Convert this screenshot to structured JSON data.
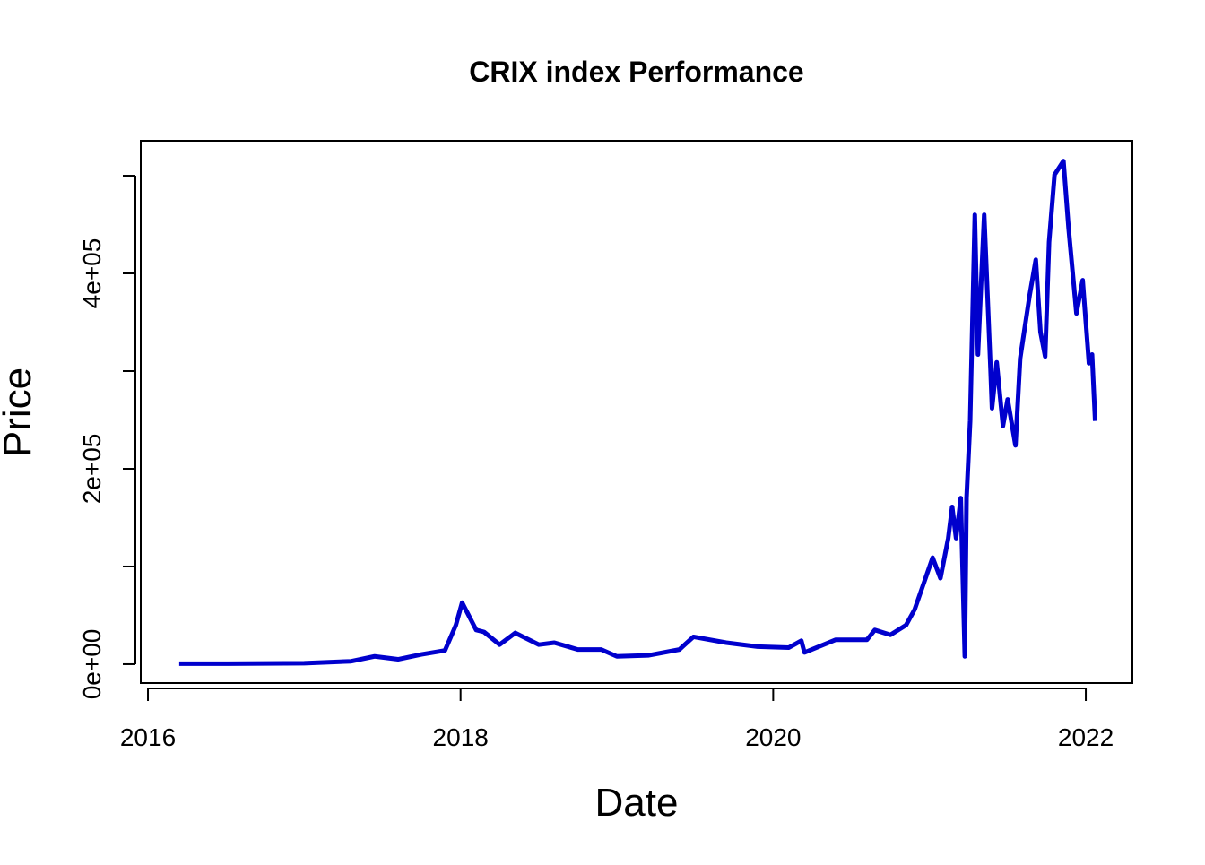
{
  "chart_data": {
    "type": "line",
    "title": "CRIX index Performance",
    "x_label": "Date",
    "y_label": "Price",
    "x": [
      2016.2,
      2016.5,
      2017.0,
      2017.3,
      2017.45,
      2017.6,
      2017.75,
      2017.9,
      2017.97,
      2018.01,
      2018.1,
      2018.15,
      2018.25,
      2018.35,
      2018.5,
      2018.6,
      2018.75,
      2018.9,
      2019.0,
      2019.2,
      2019.4,
      2019.49,
      2019.7,
      2019.9,
      2020.1,
      2020.18,
      2020.2,
      2020.4,
      2020.6,
      2020.65,
      2020.75,
      2020.85,
      2020.905,
      2021.02,
      2021.07,
      2021.12,
      2021.145,
      2021.17,
      2021.2,
      2021.226,
      2021.237,
      2021.26,
      2021.29,
      2021.31,
      2021.35,
      2021.39,
      2021.4,
      2021.43,
      2021.47,
      2021.5,
      2021.55,
      2021.58,
      2021.64,
      2021.68,
      2021.71,
      2021.74,
      2021.765,
      2021.8,
      2021.857,
      2021.89,
      2021.94,
      2021.98,
      2022.02,
      2022.04,
      2022.06
    ],
    "series": [
      {
        "name": "CRIX",
        "color": "#0000cd",
        "values": [
          500,
          500,
          1000,
          3000,
          8000,
          5000,
          10000,
          14000,
          40000,
          63000,
          35000,
          33000,
          20000,
          32000,
          20000,
          22000,
          15000,
          15000,
          8000,
          9000,
          15000,
          28000,
          22000,
          18000,
          17000,
          24000,
          12000,
          25000,
          25000,
          35000,
          30000,
          40000,
          56000,
          109000,
          88000,
          129000,
          161000,
          129000,
          170000,
          8000,
          170000,
          249000,
          460000,
          317000,
          460000,
          304000,
          262000,
          309000,
          244000,
          271000,
          224000,
          313000,
          377000,
          414000,
          340000,
          315000,
          432000,
          501000,
          515000,
          446000,
          359000,
          393000,
          308000,
          317000,
          249000
        ]
      }
    ],
    "xlim": [
      2015.954,
      2022.298
    ],
    "xticks": [
      2016,
      2018,
      2020,
      2022
    ],
    "ylim": [
      -19300,
      535800
    ],
    "yticks": [
      {
        "value": 0,
        "label": "0e+00"
      },
      {
        "value": 200000,
        "label": "2e+05"
      },
      {
        "value": 400000,
        "label": "4e+05"
      }
    ],
    "yticks_unlabeled": [
      100000,
      300000,
      500000
    ]
  }
}
